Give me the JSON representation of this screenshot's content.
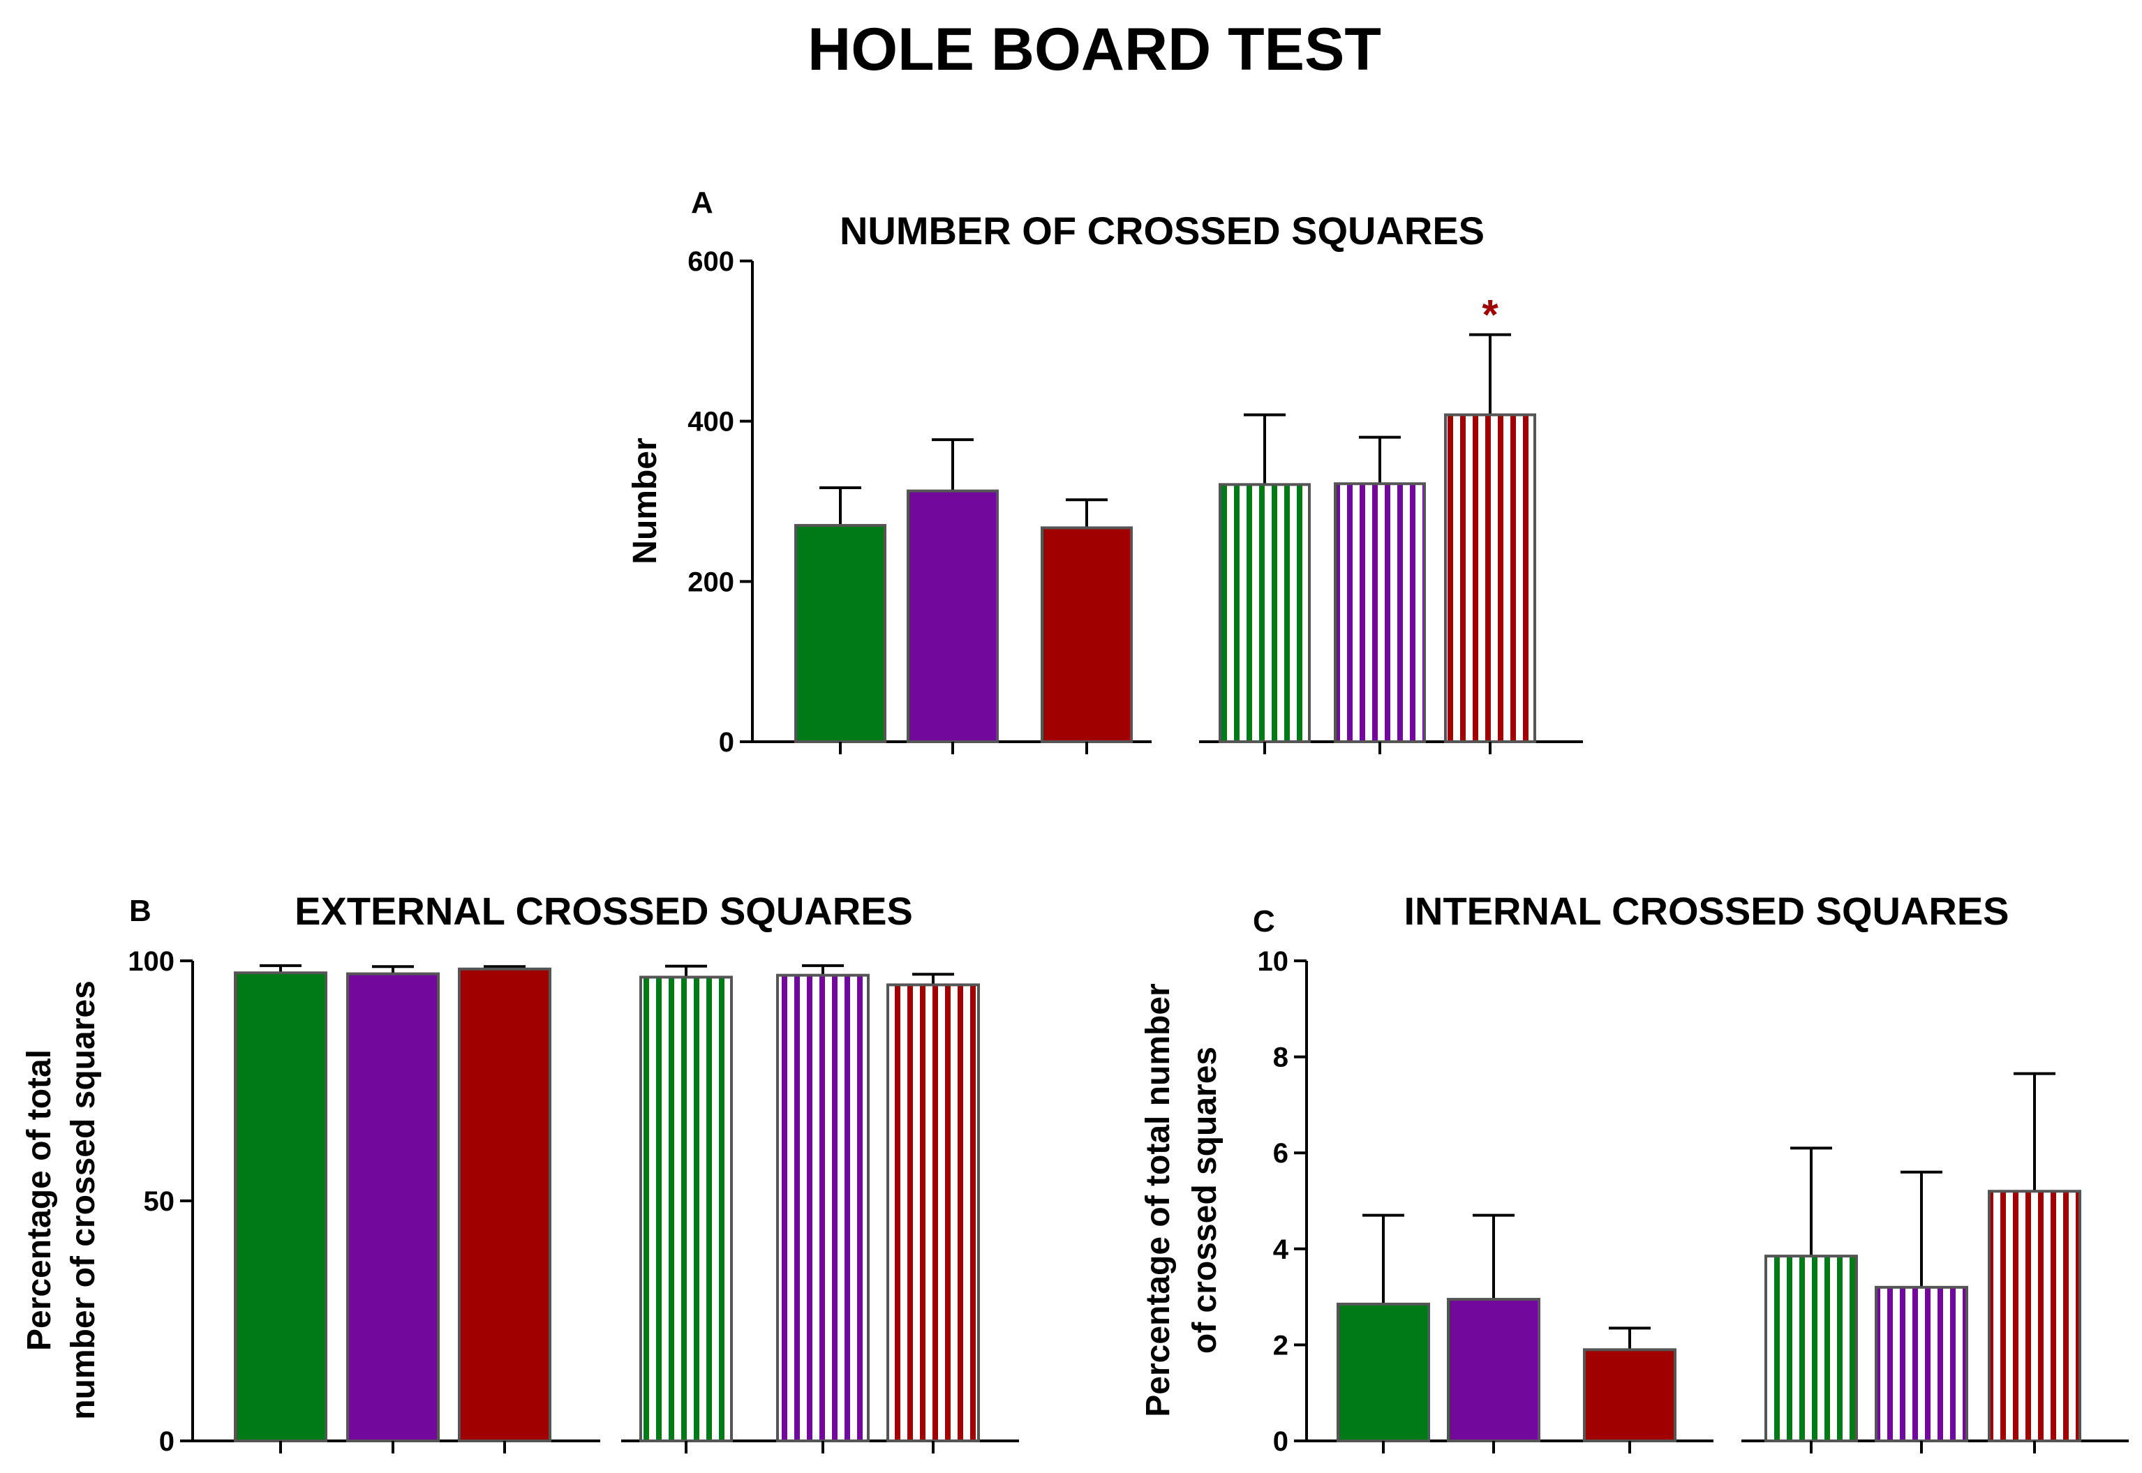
{
  "figure_title": "HOLE BOARD TEST",
  "colors": {
    "green": "#007a16",
    "purple": "#72099c",
    "red": "#a00000",
    "border": "#555555",
    "axis": "#000000"
  },
  "chart_data": [
    {
      "id": "A",
      "type": "bar",
      "letter": "A",
      "title": "NUMBER OF CROSSED SQUARES",
      "ylabel": [
        "Number"
      ],
      "ylim": [
        0,
        600
      ],
      "yticks": [
        0,
        200,
        400,
        600
      ],
      "groups": [
        {
          "pattern": "solid",
          "bars": [
            {
              "color": "green",
              "value": 270,
              "error": 47,
              "sig": ""
            },
            {
              "color": "purple",
              "value": 313,
              "error": 64,
              "sig": ""
            },
            {
              "color": "red",
              "value": 267,
              "error": 35,
              "sig": ""
            }
          ]
        },
        {
          "pattern": "striped",
          "bars": [
            {
              "color": "green",
              "value": 321,
              "error": 87,
              "sig": ""
            },
            {
              "color": "purple",
              "value": 322,
              "error": 58,
              "sig": ""
            },
            {
              "color": "red",
              "value": 408,
              "error": 100,
              "sig": "*"
            }
          ]
        }
      ]
    },
    {
      "id": "B",
      "type": "bar",
      "letter": "B",
      "title": "EXTERNAL CROSSED SQUARES",
      "ylabel": [
        "Percentage of total",
        "number of crossed squares"
      ],
      "ylim": [
        0,
        100
      ],
      "yticks": [
        0,
        50,
        100
      ],
      "groups": [
        {
          "pattern": "solid",
          "bars": [
            {
              "color": "green",
              "value": 97.5,
              "error": 1.5,
              "sig": ""
            },
            {
              "color": "purple",
              "value": 97.3,
              "error": 1.5,
              "sig": ""
            },
            {
              "color": "red",
              "value": 98.3,
              "error": 0.5,
              "sig": ""
            }
          ]
        },
        {
          "pattern": "striped",
          "bars": [
            {
              "color": "green",
              "value": 96.6,
              "error": 2.3,
              "sig": ""
            },
            {
              "color": "purple",
              "value": 97.0,
              "error": 2.0,
              "sig": ""
            },
            {
              "color": "red",
              "value": 95.0,
              "error": 2.2,
              "sig": ""
            }
          ]
        }
      ]
    },
    {
      "id": "C",
      "type": "bar",
      "letter": "C",
      "title": "INTERNAL CROSSED SQUARES",
      "ylabel": [
        "Percentage of total number",
        "of crossed squares"
      ],
      "ylim": [
        0,
        10
      ],
      "yticks": [
        0,
        2,
        4,
        6,
        8,
        10
      ],
      "groups": [
        {
          "pattern": "solid",
          "bars": [
            {
              "color": "green",
              "value": 2.85,
              "error": 1.85,
              "sig": ""
            },
            {
              "color": "purple",
              "value": 2.95,
              "error": 1.75,
              "sig": ""
            },
            {
              "color": "red",
              "value": 1.9,
              "error": 0.45,
              "sig": ""
            }
          ]
        },
        {
          "pattern": "striped",
          "bars": [
            {
              "color": "green",
              "value": 3.85,
              "error": 2.25,
              "sig": ""
            },
            {
              "color": "purple",
              "value": 3.2,
              "error": 2.4,
              "sig": ""
            },
            {
              "color": "red",
              "value": 5.2,
              "error": 2.45,
              "sig": ""
            }
          ]
        }
      ]
    }
  ]
}
